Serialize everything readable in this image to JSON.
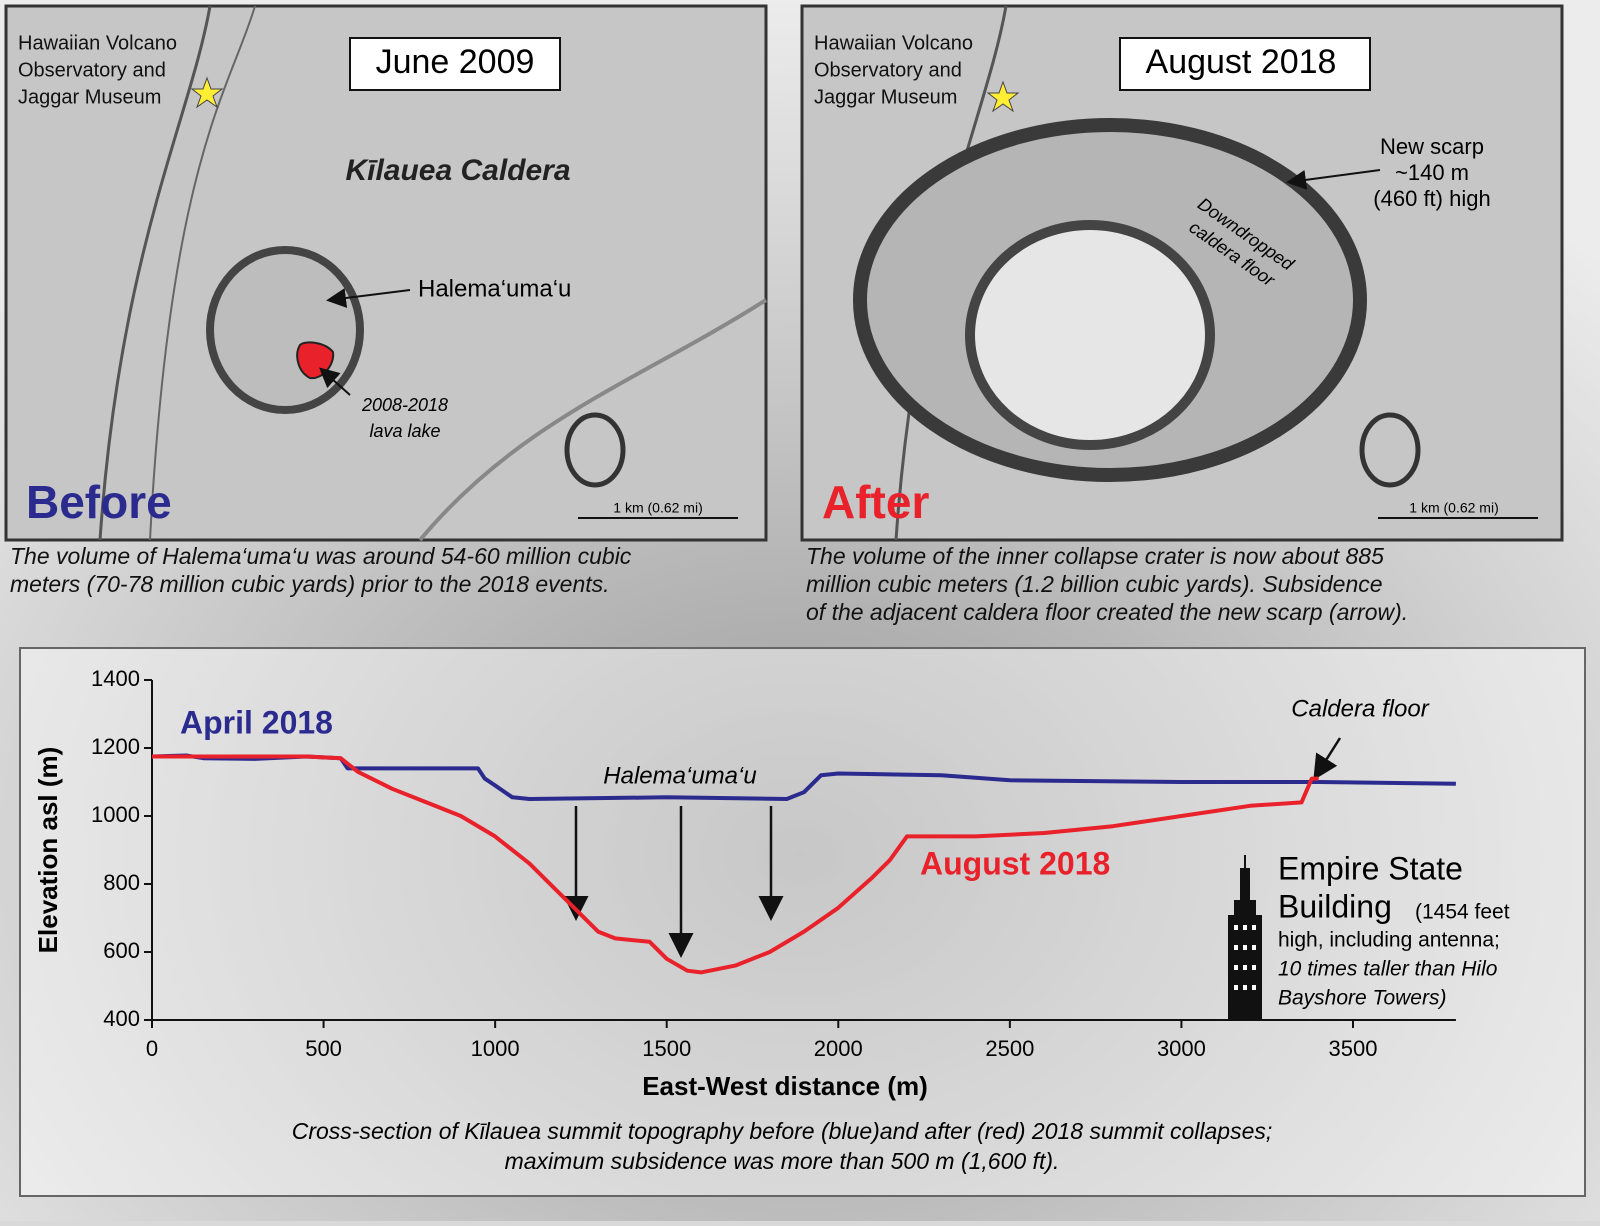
{
  "maps": [
    {
      "date": "June 2009",
      "label": "Before",
      "label_color": "#2b2b8f",
      "observatory": [
        "Hawaiian Volcano",
        "Observatory and",
        "Jaggar Museum"
      ],
      "scale": "1 km (0.62 mi)",
      "caption": [
        "The volume of Halema‘uma‘u was around 54-60 million cubic",
        "meters (70-78 million cubic yards) prior to the 2018 events."
      ]
    },
    {
      "date": "August 2018",
      "label": "After",
      "label_color": "#e8212a",
      "observatory": [
        "Hawaiian Volcano",
        "Observatory and",
        "Jaggar Museum"
      ],
      "scale": "1 km (0.62 mi)",
      "caption": [
        "The volume of the inner collapse crater is now about 885",
        "million cubic meters (1.2 billion cubic yards). Subsidence",
        "of the adjacent caldera floor created the new scarp (arrow)."
      ]
    }
  ],
  "map_labels": {
    "caldera": "Kīlauea Caldera",
    "crater": "Halema‘uma‘u",
    "lava_lake": [
      "2008-2018",
      "lava lake"
    ],
    "scarp": [
      "New scarp",
      "~140 m",
      "(460 ft) high"
    ],
    "floor": [
      "Downdropped",
      "caldera floor"
    ]
  },
  "chart_data": {
    "type": "line",
    "x_label": "East-West distance (m)",
    "y_label": "Elevation asl (m)",
    "xlim": [
      0,
      3800
    ],
    "ylim": [
      400,
      1400
    ],
    "xticks": [
      0,
      500,
      1000,
      1500,
      2000,
      2500,
      3000,
      3500
    ],
    "yticks": [
      400,
      600,
      800,
      1000,
      1200,
      1400
    ],
    "series": [
      {
        "name": "April 2018",
        "color": "#2b2b8f",
        "x": [
          0,
          100,
          150,
          300,
          450,
          550,
          570,
          950,
          970,
          1000,
          1050,
          1100,
          1500,
          1850,
          1900,
          1950,
          2000,
          2300,
          2500,
          3000,
          3400,
          3800
        ],
        "values": [
          1175,
          1178,
          1170,
          1168,
          1175,
          1170,
          1140,
          1140,
          1110,
          1090,
          1055,
          1050,
          1055,
          1050,
          1070,
          1120,
          1125,
          1120,
          1105,
          1100,
          1100,
          1095
        ]
      },
      {
        "name": "August 2018",
        "color": "#e8212a",
        "x": [
          0,
          450,
          550,
          600,
          700,
          800,
          900,
          1000,
          1100,
          1200,
          1300,
          1350,
          1400,
          1450,
          1500,
          1560,
          1600,
          1700,
          1800,
          1900,
          2000,
          2100,
          2150,
          2200,
          2400,
          2600,
          2800,
          3000,
          3200,
          3350,
          3380,
          3400
        ],
        "values": [
          1175,
          1175,
          1170,
          1130,
          1080,
          1040,
          1000,
          940,
          860,
          760,
          660,
          640,
          635,
          630,
          580,
          545,
          540,
          560,
          600,
          660,
          730,
          820,
          870,
          940,
          940,
          950,
          970,
          1000,
          1030,
          1040,
          1110,
          1110
        ]
      }
    ],
    "annotations": {
      "crater": "Halema‘uma‘u",
      "floor": "Caldera floor",
      "building": [
        "Empire State",
        "Building"
      ],
      "building_note": [
        "(1454 feet",
        "high, including antenna;",
        "10 times taller than Hilo",
        "Bayshore Towers)"
      ]
    },
    "caption": [
      "Cross-section of Kīlauea summit topography before (blue)and after (red) 2018 summit collapses;",
      "maximum subsidence was more than 500 m (1,600 ft)."
    ]
  }
}
